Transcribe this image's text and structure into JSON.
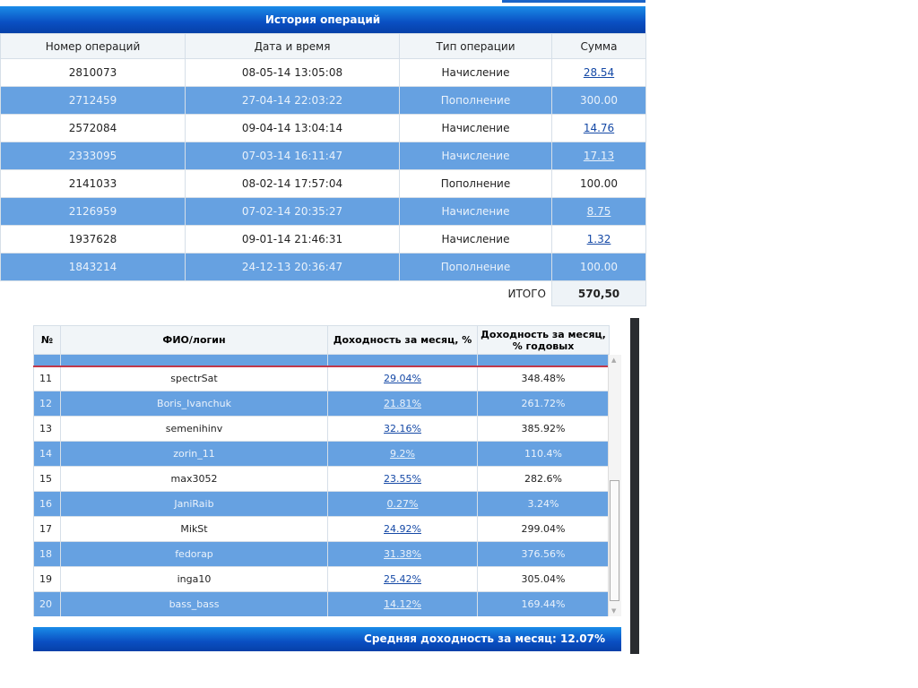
{
  "operations": {
    "title": "История операций",
    "headers": [
      "Номер операций",
      "Дата и время",
      "Тип операции",
      "Сумма"
    ],
    "rows": [
      {
        "id": "2810073",
        "date": "08-05-14 13:05:08",
        "type": "Начисление",
        "sum": "28.54",
        "link": true
      },
      {
        "id": "2712459",
        "date": "27-04-14 22:03:22",
        "type": "Пополнение",
        "sum": "300.00",
        "link": false
      },
      {
        "id": "2572084",
        "date": "09-04-14 13:04:14",
        "type": "Начисление",
        "sum": "14.76",
        "link": true
      },
      {
        "id": "2333095",
        "date": "07-03-14 16:11:47",
        "type": "Начисление",
        "sum": "17.13",
        "link": true
      },
      {
        "id": "2141033",
        "date": "08-02-14 17:57:04",
        "type": "Пополнение",
        "sum": "100.00",
        "link": false
      },
      {
        "id": "2126959",
        "date": "07-02-14 20:35:27",
        "type": "Начисление",
        "sum": "8.75",
        "link": true
      },
      {
        "id": "1937628",
        "date": "09-01-14 21:46:31",
        "type": "Начисление",
        "sum": "1.32",
        "link": true
      },
      {
        "id": "1843214",
        "date": "24-12-13 20:36:47",
        "type": "Пополнение",
        "sum": "100.00",
        "link": false
      }
    ],
    "total_label": "ИТОГО",
    "total_value": "570,50"
  },
  "rating": {
    "headers": [
      "№",
      "ФИО/логин",
      "Доходность за месяц, %",
      "Доходность за месяц, % годовых"
    ],
    "rows": [
      {
        "n": "11",
        "login": "spectrSat",
        "month": "29.04%",
        "year": "348.48%"
      },
      {
        "n": "12",
        "login": "Boris_Ivanchuk",
        "month": "21.81%",
        "year": "261.72%"
      },
      {
        "n": "13",
        "login": "semenihinv",
        "month": "32.16%",
        "year": "385.92%"
      },
      {
        "n": "14",
        "login": "zorin_11",
        "month": "9.2%",
        "year": "110.4%"
      },
      {
        "n": "15",
        "login": "max3052",
        "month": "23.55%",
        "year": "282.6%"
      },
      {
        "n": "16",
        "login": "JaniRaib",
        "month": "0.27%",
        "year": "3.24%"
      },
      {
        "n": "17",
        "login": "MikSt",
        "month": "24.92%",
        "year": "299.04%"
      },
      {
        "n": "18",
        "login": "fedorap",
        "month": "31.38%",
        "year": "376.56%"
      },
      {
        "n": "19",
        "login": "inga10",
        "month": "25.42%",
        "year": "305.04%"
      },
      {
        "n": "20",
        "login": "bass_bass",
        "month": "14.12%",
        "year": "169.44%"
      }
    ],
    "footer": "Средняя доходность за месяц: 12.07%"
  }
}
